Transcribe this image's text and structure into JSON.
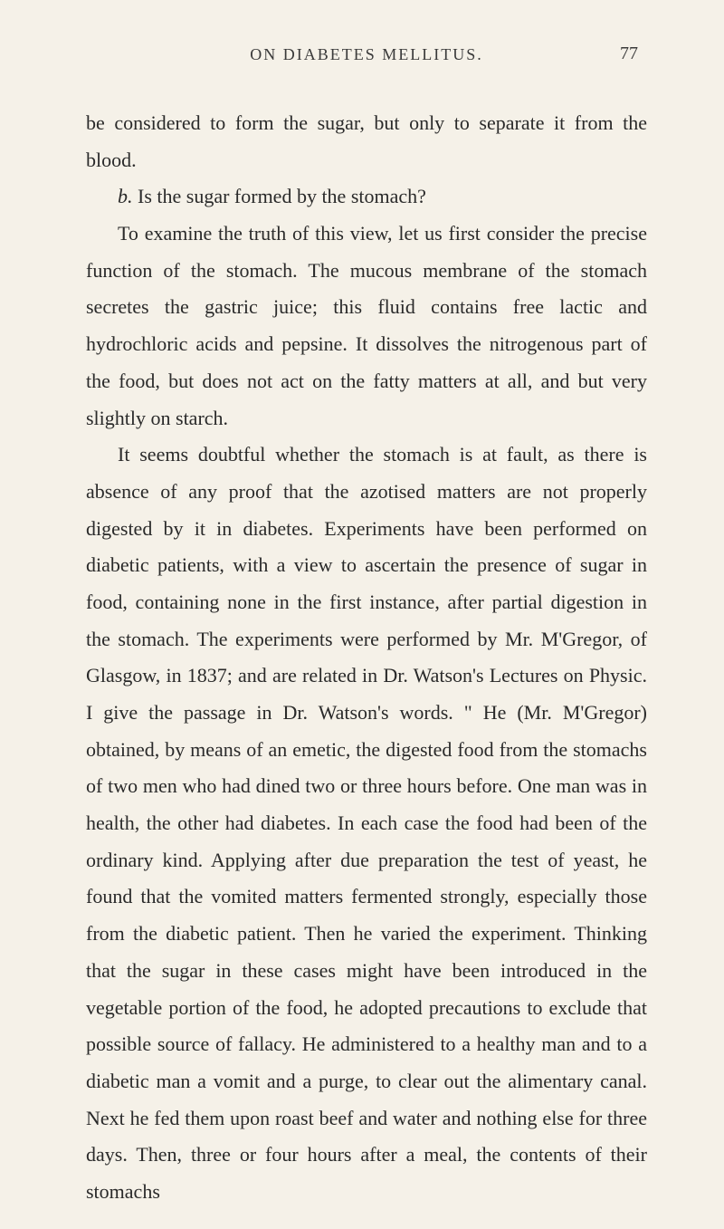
{
  "header": {
    "title": "ON DIABETES MELLITUS.",
    "page_number": "77"
  },
  "paragraphs": {
    "p1": "be considered to form the sugar, but only to separate it from the blood.",
    "p2_prefix": "b.",
    "p2_text": " Is the sugar formed by the stomach?",
    "p3": "To examine the truth of this view, let us first consider the precise function of the stomach. The mucous membrane of the stomach secretes the gastric juice; this fluid contains free lactic and hydrochloric acids and pepsine. It dissolves the nitrogenous part of the food, but does not act on the fatty matters at all, and but very slightly on starch.",
    "p4": "It seems doubtful whether the stomach is at fault, as there is absence of any proof that the azotised matters are not pro­perly digested by it in diabetes. Experiments have been performed on diabetic patients, with a view to ascertain the presence of sugar in food, containing none in the first instance, after partial digestion in the stomach. The experiments were performed by Mr. M'Gregor, of Glasgow, in 1837; and are related in Dr. Watson's Lectures on Physic. I give the pas­sage in Dr. Watson's words. \" He (Mr. M'Gregor) obtained, by means of an emetic, the digested food from the stomachs of two men who had dined two or three hours before. One man was in health, the other had diabetes. In each case the food had been of the ordinary kind. Applying after due preparation the test of yeast, he found that the vomited mat­ters fermented strongly, especially those from the diabetic patient. Then he varied the experiment. Thinking that the sugar in these cases might have been introduced in the vegetable portion of the food, he adopted precautions to ex­clude that possible source of fallacy. He administered to a healthy man and to a diabetic man a vomit and a purge, to clear out the alimentary canal. Next he fed them upon roast beef and water and nothing else for three days. Then, three or four hours after a meal, the contents of their stomachs"
  },
  "styling": {
    "background_color": "#f5f1e8",
    "text_color": "#2a2a2a",
    "header_color": "#3a3a3a",
    "font_family": "Georgia, Times New Roman, serif",
    "body_font_size": 22,
    "header_font_size": 18,
    "page_number_font_size": 20,
    "line_height": 1.85,
    "text_indent": 35
  }
}
